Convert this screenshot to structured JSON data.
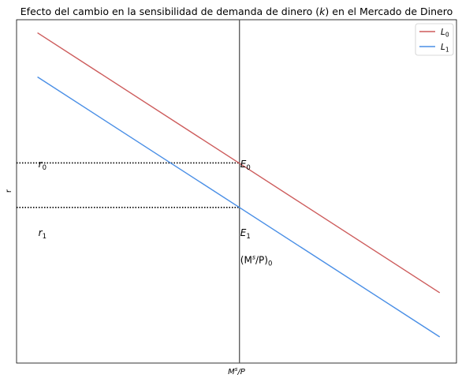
{
  "chart_data": {
    "type": "line",
    "title": "Efecto del cambio en la sensibilidad de demanda de dinero (k) en el Mercado de Dinero",
    "title_parts": [
      "Efecto del cambio en la sensibilidad de demanda de dinero (",
      "k",
      ") en el Mercado de Dinero"
    ],
    "xlabel": "Ms/P",
    "xlabel_parts": [
      "M",
      "s",
      "/P"
    ],
    "ylabel": "r",
    "xlim": [
      -3,
      102
    ],
    "ylim": [
      -3,
      102
    ],
    "grid": false,
    "legend": "top-right",
    "series": [
      {
        "name": "L0",
        "name_main": "L",
        "name_sub": "0",
        "color": "#cd5c5c",
        "x": [
          2,
          98
        ],
        "y": [
          98,
          18.5
        ]
      },
      {
        "name": "L1",
        "name_main": "L",
        "name_sub": "1",
        "color": "#4a8fe6",
        "x": [
          2,
          98
        ],
        "y": [
          84.5,
          5
        ]
      }
    ],
    "vertical_line": {
      "x": 50.2,
      "color": "#000000"
    },
    "horizontal_dotted": [
      {
        "y": 58.2,
        "x_from": -3,
        "x_to": 50.2
      },
      {
        "y": 44.6,
        "x_from": -3,
        "x_to": 50.2
      }
    ],
    "annotations": [
      {
        "main": "r",
        "sub": "0",
        "x": 2.2,
        "y": 57.8
      },
      {
        "main": "r",
        "sub": "1",
        "x": 2.2,
        "y": 36.8
      },
      {
        "main": "E",
        "sub": "0",
        "x": 50.4,
        "y": 57.8
      },
      {
        "main": "E",
        "sub": "1",
        "x": 50.4,
        "y": 36.8
      }
    ],
    "supply_label": {
      "text": "(Ms/P)0",
      "parts": [
        "(M",
        "s",
        "/P)",
        "0"
      ],
      "x": 50.4,
      "y": 28.5
    }
  }
}
